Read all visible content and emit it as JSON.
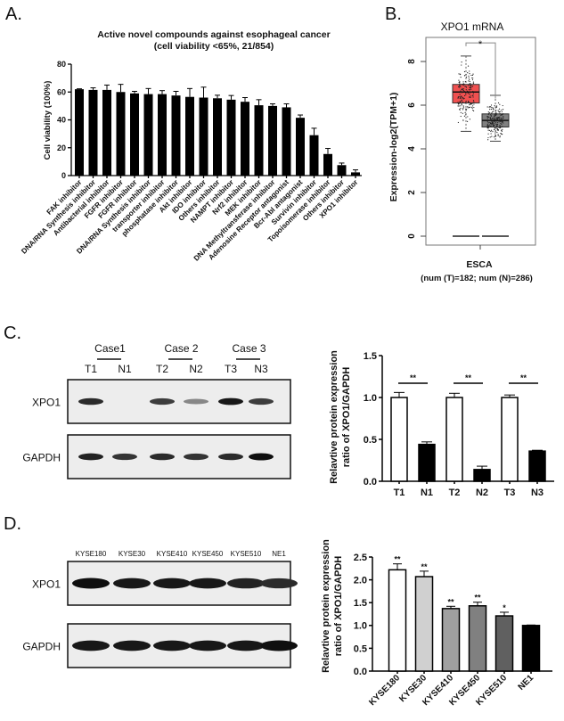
{
  "panels": {
    "a": "A.",
    "b": "B.",
    "c": "C.",
    "d": "D."
  },
  "chart_data": [
    {
      "id": "A",
      "type": "bar",
      "title": "Active novel compounds against esophageal cancer",
      "subtitle": "(cell viability <65%, 21/854)",
      "xlabel": "",
      "ylabel": "Cell viability (100%)",
      "ylim": [
        0,
        80
      ],
      "yticks": [
        "0",
        "20",
        "40",
        "60",
        "80"
      ],
      "categories": [
        "FAK inhibitor",
        "DNA/RNA Synthesis inhibitor",
        "Antibacterial inhibitor",
        "FGFR inhibitor",
        "FGFR inhibitor",
        "DNA/RNA Synthesis inhibitor",
        "transporter inhibitor",
        "phosphatase inhibitor",
        "Akt inhibitor",
        "IDO inhibitor",
        "Others inhibitor",
        "NAMPT inhibitor",
        "Nrf2 inhibitor",
        "MEK inhibitor",
        "DNA Methyltransferase inhibitor",
        "Adenosine Receptor antagonist",
        "Bcr-Abl antagonist",
        "Survivin inhibitor",
        "Topoisomerase inhibitor",
        "Others inhibitor",
        "XPO1 inhibitor"
      ],
      "values": [
        62,
        61.5,
        61.5,
        60,
        59,
        58.5,
        58.5,
        57.5,
        56.5,
        56,
        55.5,
        54.5,
        53,
        50.5,
        50,
        49,
        41.5,
        29,
        15.5,
        7.5,
        2.3
      ],
      "errors": [
        0.3,
        1.5,
        3.5,
        5.5,
        1.5,
        4,
        2.5,
        3,
        6,
        7.5,
        2.2,
        3,
        3,
        4,
        1.5,
        2.5,
        2,
        5,
        4,
        1.5,
        1.8
      ],
      "highlight_index": 20,
      "highlight_color": "#d42a2a",
      "bar_color": "#000000"
    },
    {
      "id": "B",
      "type": "box",
      "title": "XPO1  mRNA",
      "ylabel": "Expression-log2(TPM+1)",
      "xlabel": "ESCA",
      "note": "(num (T)=182;  num (N)=286)",
      "significance": "*",
      "ylim": [
        0,
        9
      ],
      "yticks": [
        "0",
        "2",
        "4",
        "6",
        "8"
      ],
      "groups": [
        {
          "name": "T",
          "n": 182,
          "color": "#f05050",
          "min": 4.8,
          "q1": 6.1,
          "median": 6.6,
          "q3": 6.95,
          "max": 8.25
        },
        {
          "name": "N",
          "n": 286,
          "color": "#808080",
          "min": 4.35,
          "q1": 5.0,
          "median": 5.3,
          "q3": 5.6,
          "max": 6.45
        }
      ]
    },
    {
      "id": "C",
      "type": "bar",
      "ylabel": "Relavtive protein expression\nratio of XPO1/GAPDH",
      "ylabel_lines": [
        "Relavtive protein expression",
        "ratio of XPO1/GAPDH"
      ],
      "ylim": [
        0,
        1.5
      ],
      "yticks": [
        "0.0",
        "0.5",
        "1.0",
        "1.5"
      ],
      "categories": [
        "T1",
        "N1",
        "T2",
        "N2",
        "T3",
        "N3"
      ],
      "values": [
        1.0,
        0.44,
        1.0,
        0.14,
        1.0,
        0.36
      ],
      "errors": [
        0.06,
        0.03,
        0.05,
        0.04,
        0.03,
        0.01
      ],
      "fills": [
        "#ffffff",
        "#000000",
        "#ffffff",
        "#000000",
        "#ffffff",
        "#000000"
      ],
      "significance": [
        "**",
        "**",
        "**"
      ]
    },
    {
      "id": "D",
      "type": "bar",
      "ylabel_lines": [
        "Relavtive protein expression",
        "ratio of XPO1/GAPDH"
      ],
      "ylim": [
        0,
        2.5
      ],
      "yticks": [
        "0.0",
        "0.5",
        "1.0",
        "1.5",
        "2.0",
        "2.5"
      ],
      "categories": [
        "KYSE180",
        "KYSE30",
        "KYSE410",
        "KYSE450",
        "KYSE510",
        "NE1"
      ],
      "values": [
        2.22,
        2.07,
        1.37,
        1.43,
        1.21,
        1.0
      ],
      "errors": [
        0.13,
        0.12,
        0.05,
        0.08,
        0.08,
        0.01
      ],
      "fills": [
        "#ffffff",
        "#d0d0d0",
        "#a0a0a0",
        "#808080",
        "#606060",
        "#000000"
      ],
      "significance": [
        "**",
        "**",
        "**",
        "**",
        "*",
        ""
      ]
    }
  ],
  "blot_c": {
    "cases": [
      "Case1",
      "Case 2",
      "Case 3"
    ],
    "lanes": [
      "T1",
      "N1",
      "T2",
      "N2",
      "T3",
      "N3"
    ],
    "rows": [
      {
        "label": "XPO1",
        "intensity": [
          0.85,
          0.0,
          0.75,
          0.35,
          0.95,
          0.75
        ]
      },
      {
        "label": "GAPDH",
        "intensity": [
          0.9,
          0.8,
          0.85,
          0.8,
          0.85,
          1.0
        ]
      }
    ]
  },
  "blot_d": {
    "lanes": [
      "KYSE180",
      "KYSE30",
      "KYSE410",
      "KYSE450",
      "KYSE510",
      "NE1"
    ],
    "rows": [
      {
        "label": "XPO1",
        "intensity": [
          1.0,
          0.95,
          0.95,
          0.95,
          0.9,
          0.85
        ]
      },
      {
        "label": "GAPDH",
        "intensity": [
          0.95,
          0.95,
          0.95,
          0.95,
          0.95,
          1.0
        ]
      }
    ]
  }
}
